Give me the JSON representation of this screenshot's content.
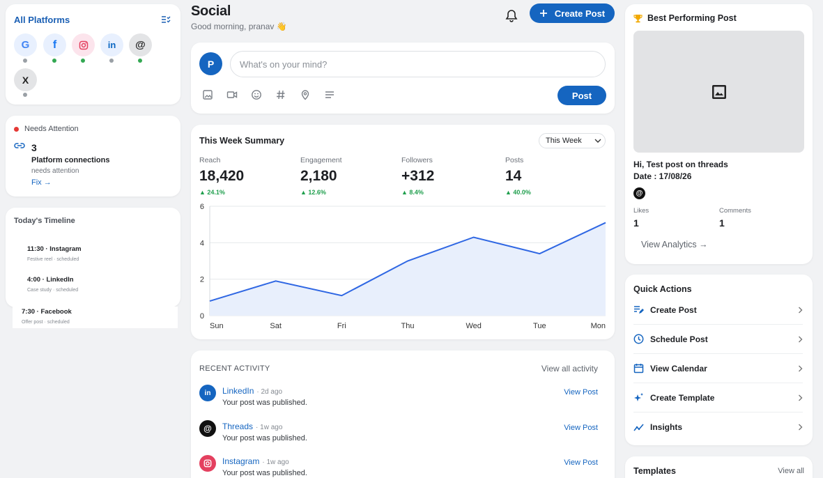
{
  "header": {
    "title": "Social",
    "greeting": "Good morning, pranav 👋",
    "create_post_label": "Create Post"
  },
  "platforms": {
    "title": "All Platforms",
    "items": [
      {
        "name": "Google",
        "glyph": "G",
        "connected": false
      },
      {
        "name": "Facebook",
        "glyph": "f",
        "connected": true
      },
      {
        "name": "Instagram",
        "glyph": "instagram-icon",
        "connected": true
      },
      {
        "name": "LinkedIn",
        "glyph": "in",
        "connected": false
      },
      {
        "name": "Threads",
        "glyph": "@",
        "connected": true
      },
      {
        "name": "X",
        "glyph": "X",
        "connected": false
      }
    ]
  },
  "attention": {
    "title": "Needs Attention",
    "count": "3",
    "label": "Platform connections",
    "sub": "needs attention",
    "fix": "Fix →"
  },
  "timeline": {
    "title": "Today's Timeline",
    "items": [
      {
        "title": "11:30 · Instagram",
        "sub": "Festive reel · scheduled"
      },
      {
        "title": "4:00 · LinkedIn",
        "sub": "Case study · scheduled"
      },
      {
        "title": "7:30 · Facebook",
        "sub": "Offer post · scheduled"
      }
    ]
  },
  "composer": {
    "avatar": "P",
    "placeholder": "What's on your mind?",
    "post_label": "Post",
    "tools": [
      "image-icon",
      "video-icon",
      "emoji-icon",
      "hashtag-icon",
      "location-icon",
      "text-format-icon"
    ]
  },
  "summary": {
    "title": "This Week Summary",
    "range": "This Week",
    "metrics": [
      {
        "label": "Reach",
        "value": "18,420",
        "delta": "▲ 24.1%"
      },
      {
        "label": "Engagement",
        "value": "2,180",
        "delta": "▲ 12.6%"
      },
      {
        "label": "Followers",
        "value": "+312",
        "delta": "▲ 8.4%"
      },
      {
        "label": "Posts",
        "value": "14",
        "delta": "▲ 40.0%"
      }
    ]
  },
  "chart_data": {
    "type": "area",
    "categories": [
      "Sun",
      "Sat",
      "Fri",
      "Thu",
      "Wed",
      "Tue",
      "Mon"
    ],
    "yticks": [
      "0",
      "2",
      "4",
      "6"
    ],
    "values": [
      0.8,
      1.9,
      1.1,
      3.0,
      4.3,
      3.4,
      5.1
    ],
    "ylim": [
      0,
      6
    ],
    "grid": true,
    "color": "#2f67e3",
    "fill": "#e8effc"
  },
  "activity": {
    "title": "RECENT ACTIVITY",
    "view_all": "View all activity",
    "items": [
      {
        "platform": "LinkedIn",
        "time": "· 2d ago",
        "message": "Your post was published.",
        "action": "View Post",
        "color": "#1565c0",
        "glyph": "in"
      },
      {
        "platform": "Threads",
        "time": "· 1w ago",
        "message": "Your post was published.",
        "action": "View Post",
        "color": "#111111",
        "glyph": "@"
      },
      {
        "platform": "Instagram",
        "time": "· 1w ago",
        "message": "Your post was published.",
        "action": "View Post",
        "color": "#e4405f",
        "glyph": "instagram-icon"
      }
    ]
  },
  "best": {
    "title": "Best Performing Post",
    "caption": "Hi, Test post on threads",
    "date": "Date : 17/08/26",
    "likes_label": "Likes",
    "likes": "1",
    "comments_label": "Comments",
    "comments": "1",
    "view_analytics": "View Analytics →"
  },
  "quick_actions": {
    "title": "Quick Actions",
    "items": [
      {
        "label": "Create Post",
        "icon": "edit-note-icon"
      },
      {
        "label": "Schedule Post",
        "icon": "clock-icon"
      },
      {
        "label": "View Calendar",
        "icon": "calendar-icon"
      },
      {
        "label": "Create Template",
        "icon": "sparkle-icon"
      },
      {
        "label": "Insights",
        "icon": "insights-icon"
      }
    ]
  },
  "templates": {
    "title": "Templates",
    "view_all": "View all"
  }
}
